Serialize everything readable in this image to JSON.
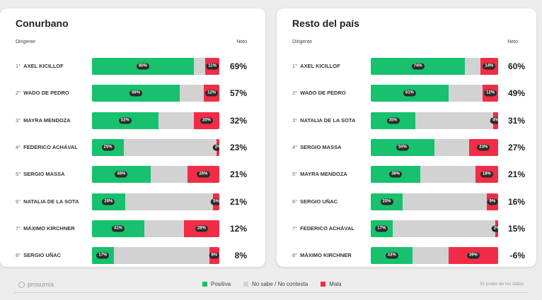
{
  "colors": {
    "positiva": "#18c16e",
    "ns_nc": "#d2d2d2",
    "mala": "#f02c47"
  },
  "chart_data": [
    {
      "type": "bar",
      "title": "Conurbano",
      "col_label": "Dirigente",
      "net_label": "Neto",
      "rows": [
        {
          "rank": "1°",
          "name": "AXEL KICILLOF",
          "positiva": 80,
          "mala": 11,
          "pos_label": "80%",
          "neg_label": "11%",
          "net": "69%"
        },
        {
          "rank": "2°",
          "name": "WADO DE PEDRO",
          "positiva": 69,
          "mala": 12,
          "pos_label": "69%",
          "neg_label": "12%",
          "net": "57%"
        },
        {
          "rank": "3°",
          "name": "MAYRA MENDOZA",
          "positiva": 52,
          "mala": 20,
          "pos_label": "52%",
          "neg_label": "20%",
          "net": "32%"
        },
        {
          "rank": "4°",
          "name": "FEDERICO ACHÁVAL",
          "positiva": 25,
          "mala": 2,
          "pos_label": "25%",
          "neg_label": "2%",
          "net": "23%"
        },
        {
          "rank": "5°",
          "name": "SERGIO MASSA",
          "positiva": 46,
          "mala": 25,
          "pos_label": "46%",
          "neg_label": "25%",
          "net": "21%"
        },
        {
          "rank": "6°",
          "name": "NATALIA DE LA SOTA",
          "positiva": 26,
          "mala": 5,
          "pos_label": "26%",
          "neg_label": "5%",
          "net": "21%"
        },
        {
          "rank": "7°",
          "name": "MÁXIMO KIRCHNER",
          "positiva": 41,
          "mala": 28,
          "pos_label": "41%",
          "neg_label": "28%",
          "net": "12%"
        },
        {
          "rank": "8°",
          "name": "SERGIO UÑAC",
          "positiva": 17,
          "mala": 8,
          "pos_label": "17%",
          "neg_label": "8%",
          "net": "8%"
        }
      ]
    },
    {
      "type": "bar",
      "title": "Resto del país",
      "col_label": "Dirigente",
      "net_label": "Neto",
      "rows": [
        {
          "rank": "1°",
          "name": "AXEL KICILLOF",
          "positiva": 74,
          "mala": 14,
          "pos_label": "74%",
          "neg_label": "14%",
          "net": "60%"
        },
        {
          "rank": "2°",
          "name": "WADO DE PEDRO",
          "positiva": 61,
          "mala": 12,
          "pos_label": "61%",
          "neg_label": "12%",
          "net": "49%"
        },
        {
          "rank": "3°",
          "name": "NATALIA DE LA SOTA",
          "positiva": 35,
          "mala": 4,
          "pos_label": "35%",
          "neg_label": "4%",
          "net": "31%"
        },
        {
          "rank": "4°",
          "name": "SERGIO MASSA",
          "positiva": 50,
          "mala": 23,
          "pos_label": "50%",
          "neg_label": "23%",
          "net": "27%"
        },
        {
          "rank": "5°",
          "name": "MAYRA MENDOZA",
          "positiva": 39,
          "mala": 18,
          "pos_label": "39%",
          "neg_label": "18%",
          "net": "21%"
        },
        {
          "rank": "6°",
          "name": "SERGIO UÑAC",
          "positiva": 25,
          "mala": 9,
          "pos_label": "25%",
          "neg_label": "9%",
          "net": "16%"
        },
        {
          "rank": "7°",
          "name": "FEDERICO ACHÁVAL",
          "positiva": 17,
          "mala": 2,
          "pos_label": "17%",
          "neg_label": "2%",
          "net": "15%"
        },
        {
          "rank": "8°",
          "name": "MÁXIMO KIRCHNER",
          "positiva": 33,
          "mala": 39,
          "pos_label": "33%",
          "neg_label": "39%",
          "net": "-6%"
        }
      ]
    }
  ],
  "legend": [
    {
      "label": "Positiva",
      "color": "#18c16e"
    },
    {
      "label": "No sabe / No contesta",
      "color": "#d2d2d2"
    },
    {
      "label": "Mala",
      "color": "#f02c47"
    }
  ],
  "footer": {
    "brand": "prosumia",
    "tagline": "El poder de los datos"
  }
}
